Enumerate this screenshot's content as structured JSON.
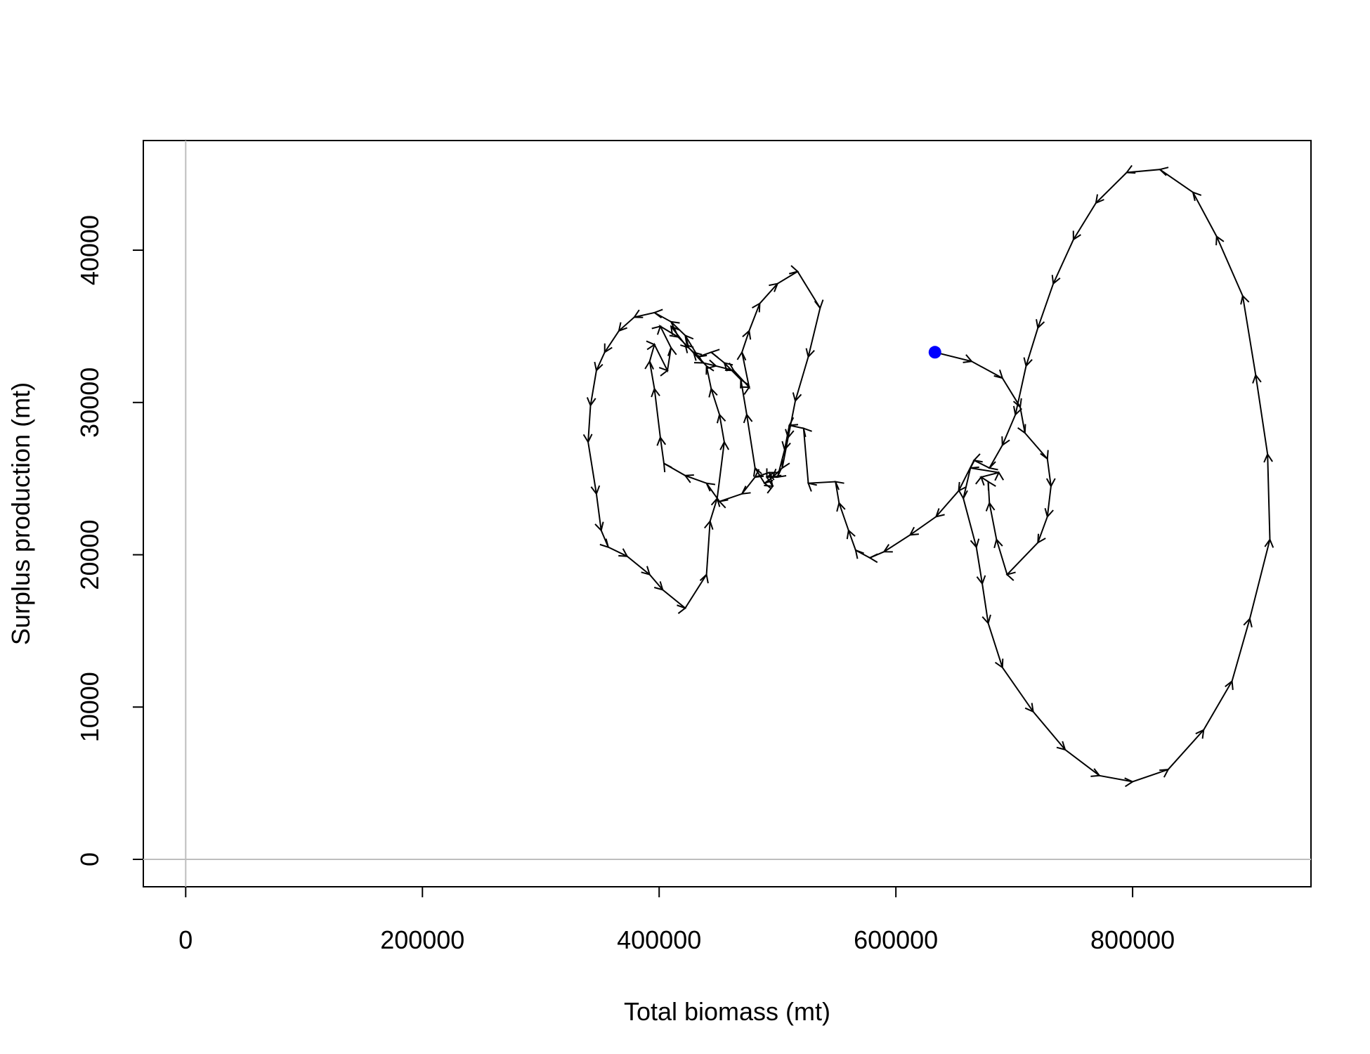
{
  "chart_data": {
    "type": "phase-path",
    "x_label": "Total biomass (mt)",
    "y_label": "Surplus production (mt)",
    "xlim": [
      -35800,
      950700
    ],
    "ylim": [
      -1800,
      47200
    ],
    "xticks": [
      0,
      200000,
      400000,
      600000,
      800000
    ],
    "yticks": [
      0,
      10000,
      20000,
      30000,
      40000
    ],
    "vline": 0,
    "hline": 0,
    "reference_color": "#bebebe",
    "color": "#000000",
    "start_color": "#0000ff",
    "arrows": true,
    "x": [
      633000,
      664000,
      690000,
      705000,
      709000,
      728000,
      731000,
      728000,
      720000,
      694000,
      685000,
      679000,
      678000,
      672000,
      687000,
      663000,
      657000,
      668000,
      673000,
      678000,
      690000,
      716000,
      743000,
      772000,
      800000,
      830000,
      860000,
      884000,
      899000,
      916000,
      914000,
      904000,
      893000,
      871000,
      851000,
      823000,
      795000,
      769000,
      750000,
      733000,
      720000,
      710000,
      701000,
      690000,
      679000,
      666000,
      653000,
      634000,
      612000,
      590000,
      578000,
      566000,
      560000,
      552000,
      549000,
      526000,
      522000,
      510000,
      506000,
      500000,
      491000,
      496000,
      493000,
      481000,
      470000,
      451000,
      440000,
      422000,
      404000,
      401000,
      396000,
      392000,
      396000,
      407000,
      410000,
      401000,
      416000,
      425000,
      437000,
      448000,
      463000,
      476000,
      470000,
      476000,
      485000,
      500000,
      517000,
      536000,
      526000,
      515000,
      509000,
      504000,
      496000,
      489000,
      481000,
      474000,
      469000,
      455000,
      444000,
      433000,
      422000,
      410000,
      396000,
      379000,
      366000,
      354000,
      347000,
      342000,
      340000,
      347000,
      351000,
      357000,
      373000,
      392000,
      403000,
      422000,
      440000,
      443000,
      449000,
      455000,
      451000,
      444000,
      440000,
      429000,
      422000,
      410000
    ],
    "values": [
      33300,
      32700,
      31600,
      29700,
      28000,
      26300,
      24500,
      22500,
      20800,
      18700,
      21000,
      23400,
      24800,
      25100,
      25400,
      25700,
      23700,
      20500,
      18100,
      15500,
      12600,
      9700,
      7200,
      5500,
      5100,
      5900,
      8500,
      11700,
      15800,
      21000,
      26600,
      31800,
      37000,
      40900,
      43800,
      45300,
      45100,
      43100,
      40700,
      37800,
      34900,
      32400,
      29200,
      27200,
      25700,
      26200,
      24200,
      22500,
      21300,
      20200,
      19800,
      20300,
      21600,
      23400,
      24800,
      24700,
      28300,
      28500,
      26900,
      25100,
      25100,
      24500,
      25400,
      25100,
      24000,
      23500,
      24700,
      25200,
      26000,
      27700,
      30900,
      32700,
      33800,
      32100,
      33600,
      35000,
      34300,
      33600,
      32600,
      32400,
      32100,
      31000,
      33300,
      34700,
      36500,
      37800,
      38600,
      36200,
      33000,
      30100,
      27700,
      25700,
      25100,
      24700,
      25700,
      29200,
      31500,
      32600,
      33300,
      33000,
      34400,
      35300,
      35900,
      35600,
      34700,
      33300,
      32100,
      29800,
      27400,
      24000,
      21600,
      20500,
      19900,
      18700,
      17700,
      16500,
      18700,
      22200,
      23700,
      27400,
      29200,
      30900,
      32400,
      33300,
      33800,
      35000
    ]
  }
}
